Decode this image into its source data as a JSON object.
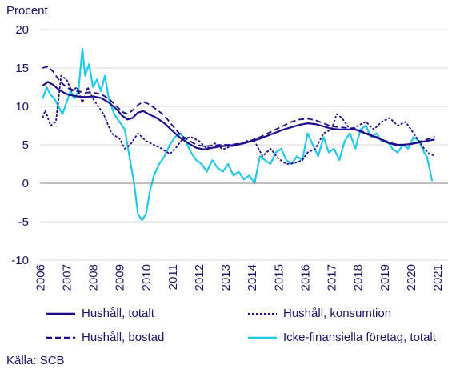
{
  "chart_data": {
    "type": "line",
    "ylabel": "Procent",
    "ylim": [
      -10,
      20
    ],
    "yticks": [
      -10,
      -5,
      0,
      5,
      10,
      15,
      20
    ],
    "xlim": [
      2005.9,
      2021.3
    ],
    "xticks": [
      "2006",
      "2007",
      "2008",
      "2009",
      "2010",
      "2011",
      "2012",
      "2013",
      "2014",
      "2015",
      "2016",
      "2017",
      "2018",
      "2019",
      "2020",
      "2021"
    ],
    "grid": "horizontal",
    "legend_position": "bottom",
    "series": [
      {
        "name": "Hushåll, totalt",
        "color": "#1a0d8c",
        "style": "solid",
        "x": [
          2006.0,
          2006.2,
          2006.4,
          2006.6,
          2006.8,
          2007.0,
          2007.3,
          2007.6,
          2007.9,
          2008.2,
          2008.5,
          2008.8,
          2009.0,
          2009.2,
          2009.4,
          2009.6,
          2009.8,
          2010.0,
          2010.3,
          2010.6,
          2010.9,
          2011.2,
          2011.5,
          2011.8,
          2012.1,
          2012.4,
          2012.7,
          2013.0,
          2013.3,
          2013.6,
          2013.9,
          2014.2,
          2014.5,
          2014.8,
          2015.1,
          2015.4,
          2015.7,
          2016.0,
          2016.3,
          2016.6,
          2016.9,
          2017.2,
          2017.5,
          2017.8,
          2018.1,
          2018.4,
          2018.7,
          2019.0,
          2019.3,
          2019.6,
          2019.9,
          2020.2,
          2020.5,
          2020.8
        ],
        "y": [
          12.7,
          13.2,
          12.8,
          12.2,
          11.8,
          11.5,
          11.3,
          11.2,
          11.3,
          11.1,
          10.5,
          9.6,
          8.8,
          8.3,
          8.5,
          9.2,
          9.4,
          9.0,
          8.5,
          7.8,
          6.8,
          5.9,
          5.2,
          4.6,
          4.4,
          4.6,
          4.8,
          4.9,
          5.0,
          5.2,
          5.5,
          5.8,
          6.2,
          6.6,
          7.0,
          7.3,
          7.6,
          7.8,
          7.7,
          7.4,
          7.1,
          7.0,
          7.0,
          7.0,
          6.6,
          6.2,
          5.8,
          5.3,
          5.0,
          5.0,
          5.1,
          5.3,
          5.5,
          5.7
        ]
      },
      {
        "name": "Hushåll, konsumtion",
        "color": "#1a0d8c",
        "style": "dotted",
        "x": [
          2006.0,
          2006.1,
          2006.3,
          2006.5,
          2006.7,
          2006.9,
          2007.1,
          2007.3,
          2007.5,
          2007.7,
          2007.9,
          2008.1,
          2008.3,
          2008.6,
          2008.9,
          2009.1,
          2009.3,
          2009.6,
          2009.9,
          2010.2,
          2010.5,
          2010.8,
          2011.0,
          2011.3,
          2011.6,
          2011.9,
          2012.2,
          2012.5,
          2012.8,
          2013.1,
          2013.4,
          2013.7,
          2014.0,
          2014.3,
          2014.6,
          2014.9,
          2015.2,
          2015.5,
          2015.8,
          2016.0,
          2016.3,
          2016.6,
          2016.9,
          2017.1,
          2017.3,
          2017.6,
          2017.9,
          2018.2,
          2018.5,
          2018.8,
          2019.1,
          2019.4,
          2019.7,
          2020.0,
          2020.2,
          2020.4,
          2020.6,
          2020.8
        ],
        "y": [
          8.5,
          9.5,
          7.5,
          8.0,
          14.0,
          13.5,
          12.0,
          12.5,
          10.5,
          12.5,
          11.0,
          10.0,
          9.0,
          6.5,
          5.8,
          4.5,
          5.0,
          6.5,
          5.5,
          5.0,
          4.5,
          3.8,
          4.5,
          5.8,
          6.0,
          5.5,
          4.5,
          5.2,
          4.4,
          4.8,
          5.0,
          5.5,
          5.5,
          3.5,
          4.5,
          3.2,
          2.5,
          2.6,
          3.0,
          4.0,
          4.5,
          6.5,
          7.0,
          9.0,
          8.5,
          7.0,
          7.5,
          8.0,
          7.0,
          8.0,
          8.5,
          7.5,
          8.0,
          6.5,
          5.5,
          4.5,
          3.8,
          3.6
        ]
      },
      {
        "name": "Hushåll, bostad",
        "color": "#1a0d8c",
        "style": "dashed",
        "x": [
          2006.0,
          2006.2,
          2006.4,
          2006.6,
          2006.8,
          2007.0,
          2007.3,
          2007.6,
          2007.9,
          2008.2,
          2008.5,
          2008.8,
          2009.0,
          2009.2,
          2009.4,
          2009.6,
          2009.8,
          2010.0,
          2010.3,
          2010.6,
          2010.9,
          2011.2,
          2011.5,
          2011.8,
          2012.1,
          2012.4,
          2012.7,
          2013.0,
          2013.3,
          2013.6,
          2013.9,
          2014.2,
          2014.5,
          2014.8,
          2015.1,
          2015.4,
          2015.7,
          2016.0,
          2016.3,
          2016.6,
          2016.9,
          2017.2,
          2017.5,
          2017.8,
          2018.1,
          2018.4,
          2018.7,
          2019.0,
          2019.3,
          2019.6,
          2019.9,
          2020.2,
          2020.5,
          2020.8
        ],
        "y": [
          15.0,
          15.2,
          14.5,
          13.5,
          12.8,
          12.3,
          12.0,
          11.8,
          11.8,
          11.6,
          11.0,
          10.0,
          9.3,
          9.0,
          9.5,
          10.2,
          10.6,
          10.3,
          9.6,
          8.8,
          7.5,
          6.3,
          5.6,
          5.0,
          4.8,
          4.9,
          5.0,
          5.0,
          5.1,
          5.3,
          5.6,
          6.0,
          6.5,
          7.0,
          7.5,
          8.0,
          8.3,
          8.4,
          8.2,
          7.8,
          7.4,
          7.3,
          7.2,
          7.1,
          6.7,
          6.3,
          5.9,
          5.4,
          5.1,
          5.0,
          5.1,
          5.4,
          5.7,
          6.1
        ]
      },
      {
        "name": "Icke-finansiella företag, totalt",
        "color": "#22c7ec",
        "style": "solid",
        "x": [
          2006.0,
          2006.15,
          2006.3,
          2006.45,
          2006.6,
          2006.75,
          2006.9,
          2007.05,
          2007.2,
          2007.35,
          2007.5,
          2007.6,
          2007.75,
          2007.9,
          2008.05,
          2008.2,
          2008.35,
          2008.5,
          2008.7,
          2008.9,
          2009.1,
          2009.3,
          2009.45,
          2009.6,
          2009.75,
          2009.9,
          2010.05,
          2010.2,
          2010.4,
          2010.6,
          2010.8,
          2011.0,
          2011.2,
          2011.4,
          2011.6,
          2011.8,
          2012.0,
          2012.2,
          2012.4,
          2012.6,
          2012.8,
          2013.0,
          2013.2,
          2013.4,
          2013.6,
          2013.8,
          2014.0,
          2014.2,
          2014.4,
          2014.6,
          2014.8,
          2015.0,
          2015.2,
          2015.4,
          2015.6,
          2015.8,
          2016.0,
          2016.2,
          2016.4,
          2016.6,
          2016.8,
          2017.0,
          2017.2,
          2017.4,
          2017.6,
          2017.8,
          2018.0,
          2018.2,
          2018.4,
          2018.6,
          2018.8,
          2019.0,
          2019.2,
          2019.4,
          2019.6,
          2019.8,
          2020.0,
          2020.2,
          2020.4,
          2020.5,
          2020.6,
          2020.7
        ],
        "y": [
          11.0,
          12.5,
          11.5,
          11.0,
          10.0,
          9.0,
          10.5,
          12.0,
          11.0,
          12.0,
          17.5,
          14.0,
          15.5,
          12.5,
          13.5,
          12.0,
          14.0,
          11.0,
          9.0,
          8.0,
          7.0,
          3.0,
          0.0,
          -4.0,
          -4.8,
          -4.0,
          -1.0,
          1.0,
          2.5,
          3.5,
          5.0,
          6.0,
          6.5,
          5.5,
          4.0,
          3.0,
          2.5,
          1.5,
          3.0,
          2.0,
          1.5,
          2.5,
          1.0,
          1.5,
          0.5,
          1.0,
          0.0,
          3.5,
          3.0,
          2.5,
          4.0,
          4.5,
          3.0,
          2.5,
          3.5,
          3.0,
          6.5,
          5.0,
          3.5,
          6.0,
          4.0,
          4.5,
          3.0,
          5.5,
          6.5,
          4.5,
          7.0,
          7.5,
          6.0,
          6.5,
          5.5,
          5.5,
          4.5,
          4.0,
          5.0,
          4.5,
          6.0,
          5.5,
          4.0,
          3.5,
          2.0,
          0.3
        ]
      }
    ],
    "source": "Källa: SCB"
  },
  "legend": [
    {
      "label": "Hushåll, totalt",
      "style": "solid",
      "color": "#1a0d8c"
    },
    {
      "label": "Hushåll, konsumtion",
      "style": "dotted",
      "color": "#1a0d8c"
    },
    {
      "label": "Hushåll, bostad",
      "style": "dashed",
      "color": "#1a0d8c"
    },
    {
      "label": "Icke-finansiella företag, totalt",
      "style": "solid",
      "color": "#22c7ec"
    }
  ],
  "source_label": "Källa: SCB"
}
